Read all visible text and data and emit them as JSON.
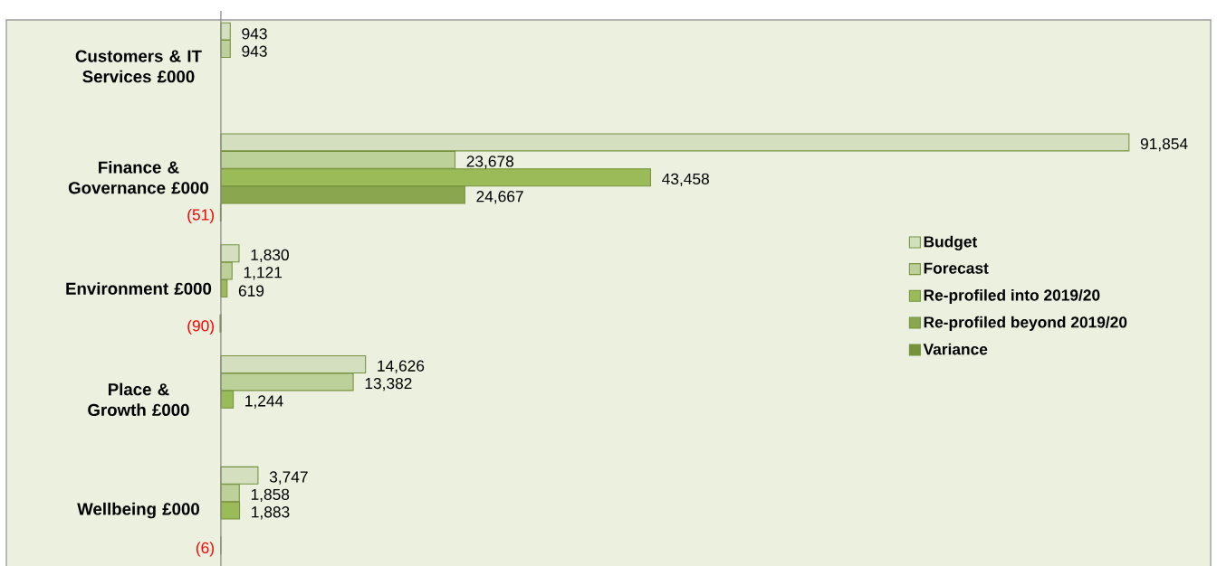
{
  "chart_data": {
    "type": "bar",
    "orientation": "horizontal",
    "legend": "right",
    "categories": [
      "Customers & IT Services £000",
      "Finance & Governance £000",
      "Environment £000",
      "Place & Growth £000",
      "Wellbeing £000"
    ],
    "series": [
      {
        "name": "Budget",
        "color": "#d3dfbf",
        "values": [
          943,
          91854,
          1830,
          14626,
          3747
        ],
        "value_labels": [
          "943",
          "91,854",
          "1,830",
          "14,626",
          "3,747"
        ]
      },
      {
        "name": "Forecast",
        "color": "#bcd09a",
        "values": [
          943,
          23678,
          1121,
          13382,
          1858
        ],
        "value_labels": [
          "943",
          "23,678",
          "1,121",
          "13,382",
          "1,858"
        ]
      },
      {
        "name": "Re-profiled into 2019/20",
        "color": "#9bbb59",
        "values": [
          null,
          43458,
          619,
          1244,
          1883
        ],
        "value_labels": [
          null,
          "43,458",
          "619",
          "1,244",
          "1,883"
        ]
      },
      {
        "name": "Re-profiled beyond 2019/20",
        "color": "#8aa64e",
        "values": [
          null,
          24667,
          null,
          null,
          null
        ],
        "value_labels": [
          null,
          "24,667",
          null,
          null,
          null
        ]
      },
      {
        "name": "Variance",
        "color": "#76923c",
        "values": [
          null,
          -51,
          -90,
          null,
          -6
        ],
        "value_labels": [
          null,
          "(51)",
          "(90)",
          null,
          "(6)"
        ]
      }
    ]
  }
}
